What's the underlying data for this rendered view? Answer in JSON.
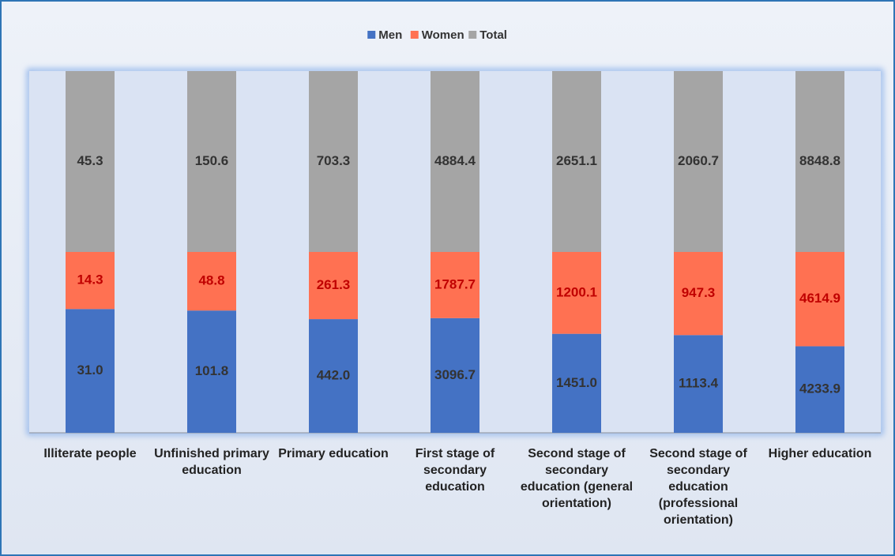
{
  "chart_data": {
    "type": "bar",
    "stacked": "percent",
    "categories": [
      "Illiterate people",
      "Unfinished primary education",
      "Primary education",
      "First stage of secondary education",
      "Second stage of secondary education (general orientation)",
      "Second stage of secondary education (professional orientation)",
      "Higher education"
    ],
    "series": [
      {
        "name": "Men",
        "color": "#4472c4",
        "label_color": "#333333",
        "values": [
          31.0,
          101.8,
          442.0,
          3096.7,
          1451.0,
          1113.4,
          4233.9
        ],
        "value_labels": [
          "31.0",
          "101.8",
          "442.0",
          "3096.7",
          "1451.0",
          "1113.4",
          "4233.9"
        ]
      },
      {
        "name": "Women",
        "color": "#ff7152",
        "label_color": "#c00000",
        "values": [
          14.3,
          48.8,
          261.3,
          1787.7,
          1200.1,
          947.3,
          4614.9
        ],
        "value_labels": [
          "14.3",
          "48.8",
          "261.3",
          "1787.7",
          "1200.1",
          "947.3",
          "4614.9"
        ]
      },
      {
        "name": "Total",
        "color": "#a5a5a5",
        "label_color": "#333333",
        "values": [
          45.3,
          150.6,
          703.3,
          4884.4,
          2651.1,
          2060.7,
          8848.8
        ],
        "value_labels": [
          "45.3",
          "150.6",
          "703.3",
          "4884.4",
          "2651.1",
          "2060.7",
          "8848.8"
        ]
      }
    ],
    "legend": "top"
  }
}
